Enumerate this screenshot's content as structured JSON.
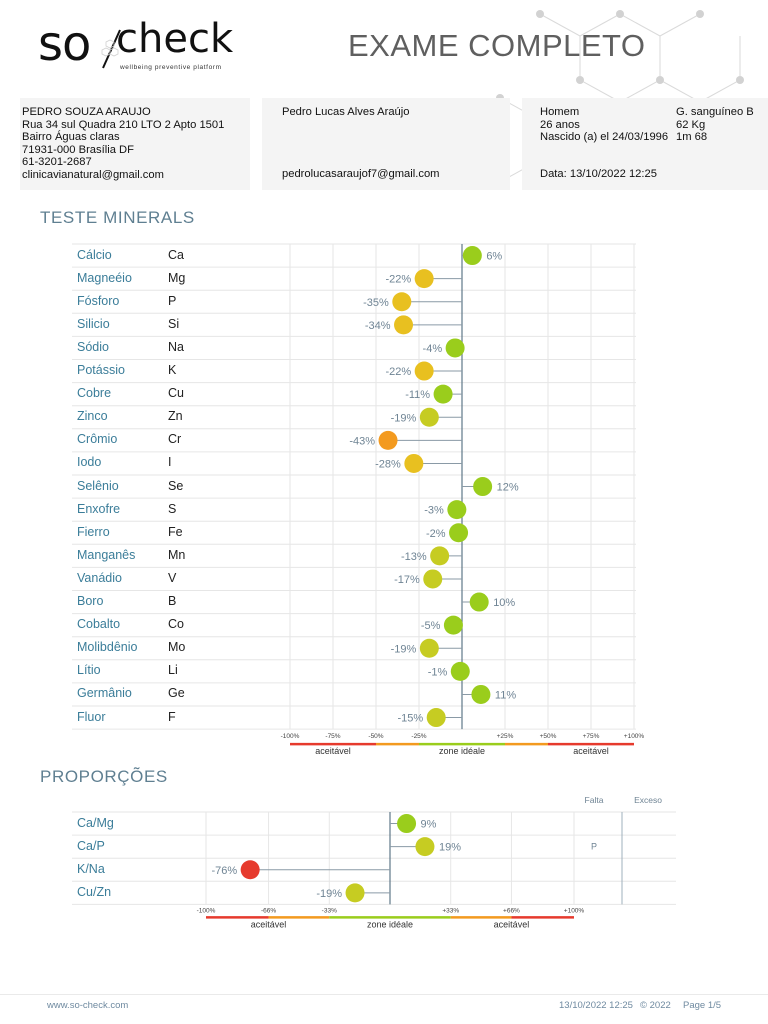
{
  "header": {
    "logo_so": "so",
    "logo_check": "check",
    "logo_tagline": "wellbeing preventive platform",
    "title": "EXAME COMPLETO"
  },
  "clinic": {
    "name": "PEDRO SOUZA ARAUJO",
    "address1": "Rua 34 sul Quadra 210 LTO 2 Apto 1501",
    "address2": "Bairro Águas claras",
    "address3": "71931-000 Brasília DF",
    "phone": "61-3201-2687",
    "email": "clinicavianatural@gmail.com"
  },
  "patient": {
    "name": "Pedro Lucas Alves Araújo",
    "email": "pedrolucasaraujof7@gmail.com"
  },
  "details": {
    "sex": "Homem",
    "blood_type": "G. sanguíneo B",
    "age": "26 anos",
    "weight": "62 Kg",
    "birth": "Nascido (a) el  24/03/1996",
    "height": "1m 68",
    "exam_date": "Data: 13/10/2022 12:25"
  },
  "colors": {
    "green": "#9acd1c",
    "yellow_green": "#c6cc22",
    "yellow": "#e8c020",
    "orange": "#f39a1f",
    "red": "#e63a2d"
  },
  "minerals": {
    "title": "TESTE MINERALS",
    "rows": [
      {
        "name": "Cálcio",
        "symbol": "Ca",
        "value": 6,
        "label": "6%"
      },
      {
        "name": "Magneéio",
        "symbol": "Mg",
        "value": -22,
        "label": "-22%"
      },
      {
        "name": "Fósforo",
        "symbol": "P",
        "value": -35,
        "label": "-35%"
      },
      {
        "name": "Silicio",
        "symbol": "Si",
        "value": -34,
        "label": "-34%"
      },
      {
        "name": "Sódio",
        "symbol": "Na",
        "value": -4,
        "label": "-4%"
      },
      {
        "name": "Potássio",
        "symbol": "K",
        "value": -22,
        "label": "-22%"
      },
      {
        "name": "Cobre",
        "symbol": "Cu",
        "value": -11,
        "label": "-11%"
      },
      {
        "name": "Zinco",
        "symbol": "Zn",
        "value": -19,
        "label": "-19%"
      },
      {
        "name": "Crômio",
        "symbol": "Cr",
        "value": -43,
        "label": "-43%"
      },
      {
        "name": "Iodo",
        "symbol": "I",
        "value": -28,
        "label": "-28%"
      },
      {
        "name": "Selênio",
        "symbol": "Se",
        "value": 12,
        "label": "12%"
      },
      {
        "name": "Enxofre",
        "symbol": "S",
        "value": -3,
        "label": "-3%"
      },
      {
        "name": "Fierro",
        "symbol": "Fe",
        "value": -2,
        "label": "-2%"
      },
      {
        "name": "Manganês",
        "symbol": "Mn",
        "value": -13,
        "label": "-13%"
      },
      {
        "name": "Vanádio",
        "symbol": "V",
        "value": -17,
        "label": "-17%"
      },
      {
        "name": "Boro",
        "symbol": "B",
        "value": 10,
        "label": "10%"
      },
      {
        "name": "Cobalto",
        "symbol": "Co",
        "value": -5,
        "label": "-5%"
      },
      {
        "name": "Molibdênio",
        "symbol": "Mo",
        "value": -19,
        "label": "-19%"
      },
      {
        "name": "Lítio",
        "symbol": "Li",
        "value": -1,
        "label": "-1%"
      },
      {
        "name": "Germânio",
        "symbol": "Ge",
        "value": 11,
        "label": "11%"
      },
      {
        "name": "Fluor",
        "symbol": "F",
        "value": -15,
        "label": "-15%"
      }
    ],
    "axis_ticks": [
      -100,
      -75,
      -50,
      -25,
      25,
      50,
      75,
      100
    ],
    "axis_tick_labels": [
      "-100%",
      "-75%",
      "-50%",
      "-25%",
      "+25%",
      "+50%",
      "+75%",
      "+100%"
    ],
    "zones": {
      "left": "aceitável",
      "center": "zone idéale",
      "right": "aceitável"
    }
  },
  "chart_data": [
    {
      "type": "bar",
      "title": "TESTE MINERALS",
      "categories": [
        "Ca",
        "Mg",
        "P",
        "Si",
        "Na",
        "K",
        "Cu",
        "Zn",
        "Cr",
        "I",
        "Se",
        "S",
        "Fe",
        "Mn",
        "V",
        "B",
        "Co",
        "Mo",
        "Li",
        "Ge",
        "F"
      ],
      "values": [
        6,
        -22,
        -35,
        -34,
        -4,
        -22,
        -11,
        -19,
        -43,
        -28,
        12,
        -3,
        -2,
        -13,
        -17,
        10,
        -5,
        -19,
        -1,
        11,
        -15
      ],
      "xlim": [
        -100,
        100
      ],
      "orientation": "horizontal"
    },
    {
      "type": "bar",
      "title": "PROPORÇÕES",
      "categories": [
        "Ca/Mg",
        "Ca/P",
        "K/Na",
        "Cu/Zn"
      ],
      "values": [
        9,
        19,
        -76,
        -19
      ],
      "xlim": [
        -100,
        100
      ],
      "orientation": "horizontal"
    }
  ],
  "proportions": {
    "title": "PROPORÇÕES",
    "col_falta": "Falta",
    "col_excesso": "Exceso",
    "rows": [
      {
        "name": "Ca/Mg",
        "value": 9,
        "label": "9%",
        "falta": ""
      },
      {
        "name": "Ca/P",
        "value": 19,
        "label": "19%",
        "falta": "P"
      },
      {
        "name": "K/Na",
        "value": -76,
        "label": "-76%",
        "falta": ""
      },
      {
        "name": "Cu/Zn",
        "value": -19,
        "label": "-19%",
        "falta": ""
      }
    ],
    "axis_ticks": [
      -100,
      -66,
      -33,
      33,
      66,
      100
    ],
    "axis_tick_labels": [
      "-100%",
      "-66%",
      "-33%",
      "+33%",
      "+66%",
      "+100%"
    ],
    "zones": {
      "left": "aceitável",
      "center": "zone idéale",
      "right": "aceitável"
    }
  },
  "footer": {
    "url": "www.so-check.com",
    "date": "13/10/2022 12:25",
    "copyright": "© 2022",
    "page": "Page 1/5"
  }
}
